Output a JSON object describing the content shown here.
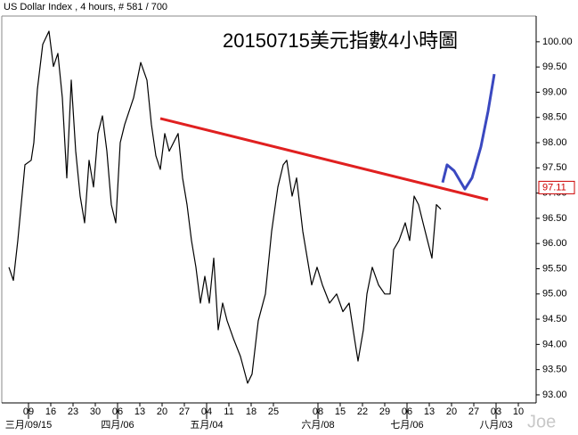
{
  "chart_data": {
    "type": "line",
    "title": "US Dollar Index , 4 hours, # 581 / 700",
    "annotation": "20150715美元指數4小時圖",
    "watermark": "Joe",
    "last_price": 97.11,
    "last_price_color": "#cc0000",
    "xlim": [
      -1.2,
      22.8
    ],
    "ylim": [
      92.84,
      100.51
    ],
    "grid": false,
    "xticks": [
      {
        "value": 0,
        "label": "09"
      },
      {
        "value": 1,
        "label": "16"
      },
      {
        "value": 2,
        "label": "23"
      },
      {
        "value": 3,
        "label": "30"
      },
      {
        "value": 4,
        "label": "06"
      },
      {
        "value": 5,
        "label": "13"
      },
      {
        "value": 6,
        "label": "20"
      },
      {
        "value": 7,
        "label": "27"
      },
      {
        "value": 8,
        "label": "04"
      },
      {
        "value": 9,
        "label": "11"
      },
      {
        "value": 10,
        "label": "18"
      },
      {
        "value": 11,
        "label": "25"
      },
      {
        "value": 13,
        "label": "08"
      },
      {
        "value": 14,
        "label": "15"
      },
      {
        "value": 15,
        "label": "22"
      },
      {
        "value": 16,
        "label": "29"
      },
      {
        "value": 17,
        "label": "06"
      },
      {
        "value": 18,
        "label": "13"
      },
      {
        "value": 19,
        "label": "20"
      },
      {
        "value": 20,
        "label": "27"
      },
      {
        "value": 21,
        "label": "03"
      },
      {
        "value": 22,
        "label": "10"
      }
    ],
    "month_ticks": [
      {
        "value": 0,
        "label": "三月/09/15"
      },
      {
        "value": 4,
        "label": "四月/06"
      },
      {
        "value": 8,
        "label": "五月/04"
      },
      {
        "value": 13,
        "label": "六月/08"
      },
      {
        "value": 17,
        "label": "七月/06"
      },
      {
        "value": 21,
        "label": "八月/03"
      }
    ],
    "yticks": [
      {
        "value": 93,
        "label": "93.00"
      },
      {
        "value": 93.5,
        "label": "93.50"
      },
      {
        "value": 94,
        "label": "94.00"
      },
      {
        "value": 94.5,
        "label": "94.50"
      },
      {
        "value": 95,
        "label": "95.00"
      },
      {
        "value": 95.5,
        "label": "95.50"
      },
      {
        "value": 96,
        "label": "96.00"
      },
      {
        "value": 96.5,
        "label": "96.50"
      },
      {
        "value": 97,
        "label": "97.00"
      },
      {
        "value": 97.5,
        "label": "97.50"
      },
      {
        "value": 98,
        "label": "98.00"
      },
      {
        "value": 98.5,
        "label": "98.50"
      },
      {
        "value": 99,
        "label": "99.00"
      },
      {
        "value": 99.5,
        "label": "99.50"
      },
      {
        "value": 100,
        "label": "100.00"
      }
    ],
    "series": [
      {
        "color": "#000000",
        "width": 1.2,
        "x": [
          -0.88,
          -0.68,
          -0.48,
          -0.16,
          0.12,
          0.24,
          0.4,
          0.64,
          0.92,
          1.12,
          1.32,
          1.52,
          1.72,
          1.92,
          2.12,
          2.32,
          2.52,
          2.72,
          2.92,
          3.12,
          3.32,
          3.52,
          3.72,
          3.92,
          4.12,
          4.32,
          4.72,
          5.04,
          5.32,
          5.52,
          5.72,
          5.92,
          6.12,
          6.32,
          6.72,
          6.92,
          7.12,
          7.32,
          7.52,
          7.72,
          7.92,
          8.12,
          8.32,
          8.52,
          8.72,
          8.92,
          9.2,
          9.52,
          9.84,
          10.04,
          10.32,
          10.64,
          10.92,
          11.2,
          11.44,
          11.6,
          11.84,
          12.04,
          12.32,
          12.52,
          12.72,
          12.96,
          13.2,
          13.52,
          13.84,
          14.12,
          14.4,
          14.64,
          14.8,
          15.04,
          15.2,
          15.44,
          15.72,
          16,
          16.24,
          16.4,
          16.64,
          16.92,
          17.12,
          17.32,
          17.52,
          17.72,
          17.92,
          18.12,
          18.32,
          18.52
        ],
        "values": [
          95.53,
          95.27,
          96.06,
          97.56,
          97.65,
          98.0,
          99.06,
          99.95,
          100.21,
          99.51,
          99.77,
          98.89,
          97.3,
          99.24,
          97.83,
          96.94,
          96.41,
          97.65,
          97.12,
          98.18,
          98.53,
          97.83,
          96.77,
          96.41,
          98.0,
          98.36,
          98.89,
          99.59,
          99.24,
          98.36,
          97.74,
          97.47,
          98.18,
          97.83,
          98.18,
          97.3,
          96.77,
          96.06,
          95.53,
          94.82,
          95.35,
          94.82,
          95.71,
          94.29,
          94.82,
          94.47,
          94.12,
          93.76,
          93.23,
          93.41,
          94.47,
          95.0,
          96.24,
          97.12,
          97.56,
          97.65,
          96.94,
          97.3,
          96.24,
          95.71,
          95.18,
          95.53,
          95.18,
          94.82,
          95.0,
          94.65,
          94.82,
          94.12,
          93.67,
          94.29,
          95.0,
          95.53,
          95.18,
          95.0,
          95.0,
          95.88,
          96.06,
          96.41,
          96.06,
          96.94,
          96.77,
          96.41,
          96.06,
          95.71,
          96.77,
          96.68
        ]
      },
      {
        "color": "#e02020",
        "width": 3,
        "x": [
          5.92,
          20.64
        ],
        "values": [
          98.48,
          96.87
        ]
      },
      {
        "color": "#3a48c0",
        "width": 3,
        "x": [
          18.6,
          18.8,
          19.12,
          19.6,
          19.92,
          20.32,
          20.64,
          20.92
        ],
        "values": [
          97.21,
          97.56,
          97.44,
          97.08,
          97.3,
          97.92,
          98.62,
          99.36
        ]
      }
    ]
  }
}
